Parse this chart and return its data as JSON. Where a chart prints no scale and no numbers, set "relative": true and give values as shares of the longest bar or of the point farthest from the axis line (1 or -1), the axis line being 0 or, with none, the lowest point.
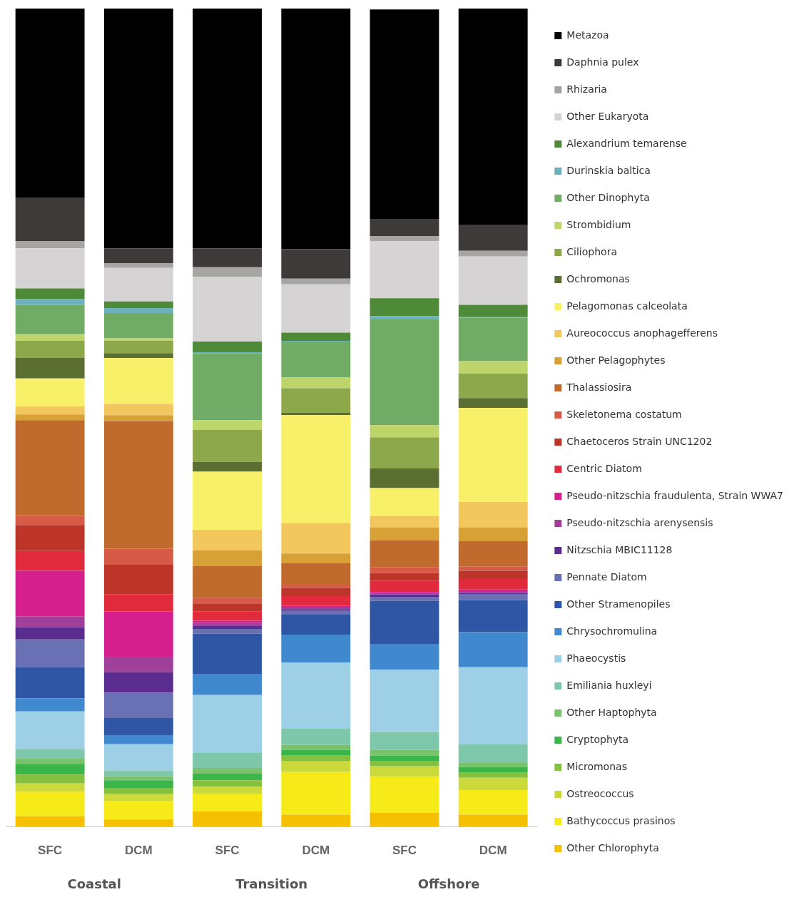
{
  "chart_data": {
    "type": "bar",
    "stacked": true,
    "relative": true,
    "legend": "right",
    "grid": false,
    "categories": [
      "SFC",
      "DCM",
      "SFC",
      "DCM",
      "SFC",
      "DCM"
    ],
    "annotations": [
      "Coastal",
      "Transition",
      "Offshore"
    ],
    "series": [
      {
        "name": "Other Chlorophyta",
        "color": "#f5c000",
        "values": [
          0.013,
          0.009,
          0.019,
          0.015,
          0.017,
          0.015
        ]
      },
      {
        "name": "Bathycoccus prasinos",
        "color": "#f6ea18",
        "values": [
          0.03,
          0.023,
          0.021,
          0.052,
          0.044,
          0.03
        ]
      },
      {
        "name": "Ostreococcus",
        "color": "#cbd93b",
        "values": [
          0.01,
          0.008,
          0.009,
          0.013,
          0.013,
          0.015
        ]
      },
      {
        "name": "Micromonas",
        "color": "#86c03f",
        "values": [
          0.011,
          0.007,
          0.008,
          0.007,
          0.006,
          0.006
        ]
      },
      {
        "name": "Cryptophyta",
        "color": "#3bb54a",
        "values": [
          0.013,
          0.01,
          0.008,
          0.007,
          0.007,
          0.007
        ]
      },
      {
        "name": "Other Haptophyta",
        "color": "#79c26b",
        "values": [
          0.007,
          0.005,
          0.007,
          0.006,
          0.007,
          0.005
        ]
      },
      {
        "name": "Emiliania huxleyi",
        "color": "#7ec7ab",
        "values": [
          0.011,
          0.007,
          0.019,
          0.02,
          0.022,
          0.023
        ]
      },
      {
        "name": "Phaeocystis",
        "color": "#9dcfe6",
        "values": [
          0.046,
          0.032,
          0.07,
          0.081,
          0.076,
          0.094
        ]
      },
      {
        "name": "Chrysochromulina",
        "color": "#4189cf",
        "values": [
          0.016,
          0.011,
          0.026,
          0.034,
          0.031,
          0.043
        ]
      },
      {
        "name": "Other Stramenopiles",
        "color": "#2f55a5",
        "values": [
          0.038,
          0.021,
          0.049,
          0.025,
          0.053,
          0.039
        ]
      },
      {
        "name": "Pennate Diatom",
        "color": "#6a70b4",
        "values": [
          0.034,
          0.031,
          0.006,
          0.004,
          0.005,
          0.007
        ]
      },
      {
        "name": "Nitzschia MBIC11128",
        "color": "#5a2c8f",
        "values": [
          0.015,
          0.025,
          0.004,
          0.002,
          0.003,
          0.002
        ]
      },
      {
        "name": "Pseudo-nitzschia arenysensis",
        "color": "#a1409b",
        "values": [
          0.013,
          0.019,
          0.003,
          0.002,
          0.002,
          0.002
        ]
      },
      {
        "name": "Pseudo-nitzschia fraudulenta, Strain WWA7",
        "color": "#d41f8d",
        "values": [
          0.056,
          0.055,
          0.003,
          0.002,
          0.002,
          0.002
        ]
      },
      {
        "name": "Centric Diatom",
        "color": "#e12a3c",
        "values": [
          0.024,
          0.021,
          0.011,
          0.012,
          0.013,
          0.013
        ]
      },
      {
        "name": "Chaetoceros Strain UNC1202",
        "color": "#bd3428",
        "values": [
          0.032,
          0.037,
          0.01,
          0.01,
          0.009,
          0.01
        ]
      },
      {
        "name": "Skeletonema costatum",
        "color": "#d75a47",
        "values": [
          0.011,
          0.019,
          0.007,
          0.004,
          0.007,
          0.005
        ]
      },
      {
        "name": "Thalassiosira",
        "color": "#c06a2e",
        "values": [
          0.117,
          0.156,
          0.039,
          0.026,
          0.033,
          0.031
        ]
      },
      {
        "name": "Other Pelagophytes",
        "color": "#d7a136",
        "values": [
          0.007,
          0.007,
          0.019,
          0.012,
          0.016,
          0.017
        ]
      },
      {
        "name": "Aureococcus anophagefferens",
        "color": "#f2c75d",
        "values": [
          0.01,
          0.014,
          0.025,
          0.037,
          0.014,
          0.031
        ]
      },
      {
        "name": "Pelagomonas calceolata",
        "color": "#f9f06a",
        "values": [
          0.034,
          0.056,
          0.071,
          0.132,
          0.034,
          0.115
        ]
      },
      {
        "name": "Ochromonas",
        "color": "#5a6f31",
        "values": [
          0.025,
          0.006,
          0.012,
          0.003,
          0.024,
          0.012
        ]
      },
      {
        "name": "Ciliophora",
        "color": "#8ca84a",
        "values": [
          0.021,
          0.015,
          0.039,
          0.03,
          0.038,
          0.03
        ]
      },
      {
        "name": "Strombidium",
        "color": "#bdd56b",
        "values": [
          0.008,
          0.003,
          0.012,
          0.013,
          0.015,
          0.015
        ]
      },
      {
        "name": "Other Dinophyta",
        "color": "#71ac67",
        "values": [
          0.036,
          0.031,
          0.082,
          0.044,
          0.129,
          0.053
        ]
      },
      {
        "name": "Durinskia baltica",
        "color": "#6cb1bb",
        "values": [
          0.007,
          0.006,
          0.001,
          0.001,
          0.004,
          0.001
        ]
      },
      {
        "name": "Alexandrium temarense",
        "color": "#4e8a37",
        "values": [
          0.013,
          0.008,
          0.013,
          0.01,
          0.022,
          0.015
        ]
      },
      {
        "name": "Other Eukaryota",
        "color": "#d5d3d4",
        "values": [
          0.049,
          0.041,
          0.079,
          0.059,
          0.07,
          0.059
        ]
      },
      {
        "name": "Rhizaria",
        "color": "#a6a5a4",
        "values": [
          0.009,
          0.006,
          0.012,
          0.007,
          0.006,
          0.007
        ]
      },
      {
        "name": "Daphnia pulex",
        "color": "#3d3a39",
        "values": [
          0.053,
          0.018,
          0.023,
          0.036,
          0.021,
          0.032
        ]
      },
      {
        "name": "Metazoa",
        "color": "#000000",
        "values": [
          0.231,
          0.293,
          0.293,
          0.294,
          0.256,
          0.264
        ]
      }
    ]
  }
}
